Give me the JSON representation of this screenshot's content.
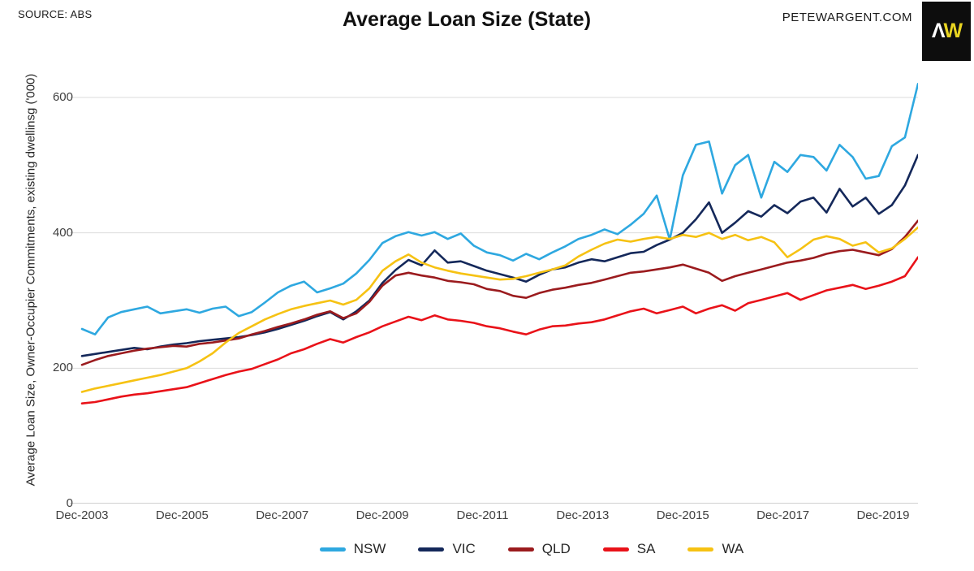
{
  "header": {
    "source": "SOURCE: ABS",
    "title": "Average Loan Size (State)",
    "website": "PETEWARGENT.COM",
    "logo": {
      "lambda": "Λ",
      "w": "W",
      "background": "#0d0d0d",
      "lambda_color": "#ffffff",
      "w_color": "#e8d421"
    }
  },
  "chart_data": {
    "type": "line",
    "title": "Average Loan Size (State)",
    "xlabel": "",
    "ylabel": "Average Loan Size, Owner-Occupier Commitments, existing dwellinsg ('000)",
    "x_start": "Dec-2003",
    "x_end": "Dec-2019",
    "sampling": "quarterly",
    "x_tick_labels": [
      "Dec-2003",
      "Dec-2005",
      "Dec-2007",
      "Dec-2009",
      "Dec-2011",
      "Dec-2013",
      "Dec-2015",
      "Dec-2017",
      "Dec-2019"
    ],
    "y_ticks": [
      0,
      200,
      400,
      600
    ],
    "ylim": [
      0,
      660
    ],
    "grid": "horizontal",
    "grid_color": "#dbdbdb",
    "axis_color": "#c0c0c0",
    "legend_position": "bottom",
    "series": [
      {
        "name": "NSW",
        "color": "#2ea8e0",
        "values": [
          258,
          250,
          275,
          283,
          287,
          291,
          281,
          284,
          287,
          282,
          288,
          291,
          277,
          283,
          297,
          312,
          322,
          328,
          312,
          318,
          325,
          340,
          360,
          385,
          395,
          401,
          396,
          401,
          391,
          399,
          381,
          371,
          367,
          359,
          369,
          361,
          371,
          380,
          391,
          397,
          405,
          398,
          412,
          428,
          455,
          390,
          485,
          530,
          535,
          458,
          500,
          515,
          452,
          505,
          490,
          515,
          512,
          492,
          530,
          512,
          480,
          484,
          528,
          541,
          620
        ]
      },
      {
        "name": "VIC",
        "color": "#14285a",
        "values": [
          218,
          221,
          224,
          227,
          230,
          228,
          232,
          235,
          237,
          240,
          242,
          244,
          246,
          249,
          253,
          258,
          264,
          270,
          277,
          283,
          272,
          284,
          300,
          326,
          345,
          360,
          352,
          374,
          356,
          358,
          351,
          344,
          339,
          334,
          328,
          338,
          346,
          349,
          356,
          361,
          358,
          364,
          370,
          372,
          382,
          390,
          400,
          420,
          445,
          400,
          415,
          432,
          424,
          441,
          429,
          446,
          452,
          430,
          465,
          439,
          452,
          428,
          441,
          470,
          515
        ]
      },
      {
        "name": "QLD",
        "color": "#9b1b1e",
        "values": [
          205,
          212,
          218,
          222,
          226,
          229,
          231,
          233,
          232,
          236,
          238,
          241,
          244,
          250,
          255,
          261,
          266,
          272,
          279,
          284,
          274,
          281,
          298,
          322,
          337,
          341,
          337,
          334,
          329,
          327,
          324,
          317,
          314,
          307,
          304,
          311,
          316,
          319,
          323,
          326,
          331,
          336,
          341,
          343,
          346,
          349,
          353,
          347,
          341,
          329,
          336,
          341,
          346,
          351,
          356,
          359,
          363,
          369,
          373,
          375,
          371,
          367,
          376,
          394,
          418
        ]
      },
      {
        "name": "SA",
        "color": "#e91219",
        "values": [
          148,
          150,
          154,
          158,
          161,
          163,
          166,
          169,
          172,
          178,
          184,
          190,
          195,
          199,
          206,
          213,
          222,
          228,
          236,
          243,
          238,
          246,
          253,
          262,
          269,
          276,
          271,
          278,
          272,
          270,
          267,
          262,
          259,
          254,
          250,
          257,
          262,
          263,
          266,
          268,
          272,
          278,
          284,
          288,
          281,
          286,
          291,
          281,
          288,
          293,
          285,
          296,
          301,
          306,
          311,
          301,
          308,
          315,
          319,
          323,
          317,
          322,
          328,
          336,
          364
        ]
      },
      {
        "name": "WA",
        "color": "#f6c213",
        "values": [
          165,
          170,
          174,
          178,
          182,
          186,
          190,
          195,
          200,
          210,
          222,
          238,
          252,
          262,
          272,
          280,
          287,
          292,
          296,
          300,
          294,
          301,
          318,
          344,
          358,
          368,
          356,
          349,
          344,
          340,
          337,
          334,
          331,
          332,
          336,
          341,
          346,
          352,
          365,
          375,
          384,
          390,
          387,
          391,
          394,
          391,
          397,
          394,
          400,
          391,
          397,
          389,
          394,
          386,
          364,
          376,
          390,
          395,
          391,
          381,
          386,
          371,
          377,
          391,
          408
        ]
      }
    ]
  }
}
